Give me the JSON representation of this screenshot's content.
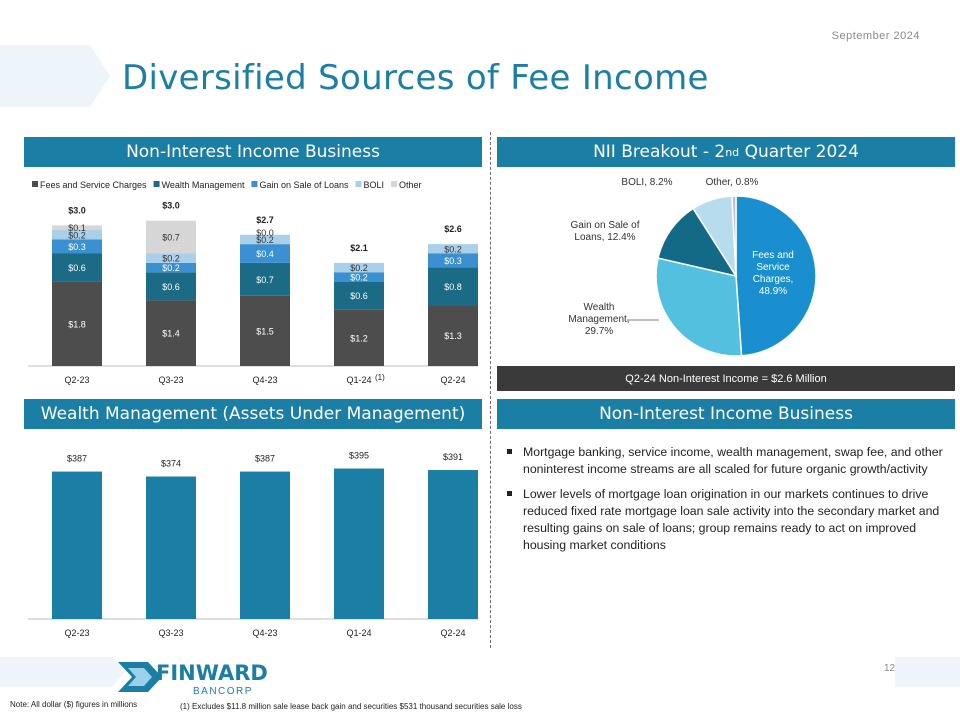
{
  "header": {
    "date": "September  2024",
    "title": "Diversified Sources of Fee Income"
  },
  "sections": {
    "nii_business_top": "Non-Interest Income Business",
    "nii_breakout_main": "NII Breakout - 2",
    "nii_breakout_sup": "nd",
    "nii_breakout_tail": " Quarter 2024",
    "wealth": "Wealth Management (Assets Under Management)",
    "nii_business_right": "Non-Interest Income Business"
  },
  "summary": "Q2-24 Non-Interest  Income = $2.6 Million",
  "bullets": [
    "Mortgage banking, service income, wealth management, swap fee, and other noninterest income streams are all scaled for future organic growth/activity",
    "Lower levels of mortgage loan origination in our markets continues to drive reduced fixed rate mortgage loan sale activity into the secondary market and resulting gains on sale of loans; group remains ready to act on improved housing market conditions"
  ],
  "footer": {
    "logo_main": "FINWARD",
    "logo_sub": "BANCORP",
    "page": "12",
    "note": "Note: All dollar ($) figures in millions",
    "footnote": "(1) Excludes $11.8 million sale lease back gain and securities $531 thousand securities sale loss"
  },
  "colors": {
    "accent": "#1b7ea4",
    "fees": "#4d4d4d",
    "wealth": "#1b6a86",
    "gain": "#3a90d0",
    "boli": "#a9cfe9",
    "other": "#d6d6d6"
  },
  "chart_data": [
    {
      "type": "bar",
      "stacked": true,
      "title": "Non-Interest Income Business",
      "categories": [
        "Q2-23",
        "Q3-23",
        "Q4-23",
        "Q1-24",
        "Q2-24"
      ],
      "footnote_marker": {
        "category": "Q1-24",
        "text": "(1)"
      },
      "series": [
        {
          "name": "Fees and Service Charges",
          "values": [
            1.8,
            1.4,
            1.5,
            1.2,
            1.3
          ],
          "labels": [
            "$1.8",
            "$1.4",
            "$1.5",
            "$1.2",
            "$1.3"
          ]
        },
        {
          "name": "Wealth Management",
          "values": [
            0.6,
            0.6,
            0.7,
            0.6,
            0.8
          ],
          "labels": [
            "$0.6",
            "$0.6",
            "$0.7",
            "$0.6",
            "$0.8"
          ]
        },
        {
          "name": "Gain on Sale of Loans",
          "values": [
            0.3,
            0.2,
            0.4,
            0.2,
            0.3
          ],
          "labels": [
            "$0.3",
            "$0.2",
            "$0.4",
            "$0.2",
            "$0.3"
          ]
        },
        {
          "name": "BOLI",
          "values": [
            0.2,
            0.2,
            0.2,
            0.2,
            0.2
          ],
          "labels": [
            "$0.2",
            "$0.2",
            "$0.2",
            "$0.2",
            "$0.2"
          ]
        },
        {
          "name": "Other",
          "values": [
            0.1,
            0.7,
            0.0,
            0.0,
            0.0
          ],
          "labels": [
            "$0.1",
            "$0.7",
            "$0.0",
            "",
            ""
          ]
        }
      ],
      "totals": [
        "$3.0",
        "$3.0",
        "$2.7",
        "$2.1",
        "$2.6"
      ],
      "ylim": [
        0,
        3.2
      ]
    },
    {
      "type": "pie",
      "title": "NII Breakout - 2nd Quarter 2024",
      "slices": [
        {
          "name": "Fees and Service Charges",
          "value": 48.9,
          "label": "Fees and Service Charges, 48.9%"
        },
        {
          "name": "Wealth Management",
          "value": 29.7,
          "label": "Wealth Management, 29.7%"
        },
        {
          "name": "Gain on Sale of Loans",
          "value": 12.4,
          "label": "Gain on Sale of Loans, 12.4%"
        },
        {
          "name": "BOLI",
          "value": 8.2,
          "label": "BOLI, 8.2%"
        },
        {
          "name": "Other",
          "value": 0.8,
          "label": "Other, 0.8%"
        }
      ]
    },
    {
      "type": "bar",
      "title": "Wealth Management (Assets Under Management)",
      "categories": [
        "Q2-23",
        "Q3-23",
        "Q4-23",
        "Q1-24",
        "Q2-24"
      ],
      "values": [
        387,
        374,
        387,
        395,
        391
      ],
      "labels": [
        "$387",
        "$374",
        "$387",
        "$395",
        "$391"
      ],
      "ylim": [
        0,
        420
      ]
    }
  ]
}
